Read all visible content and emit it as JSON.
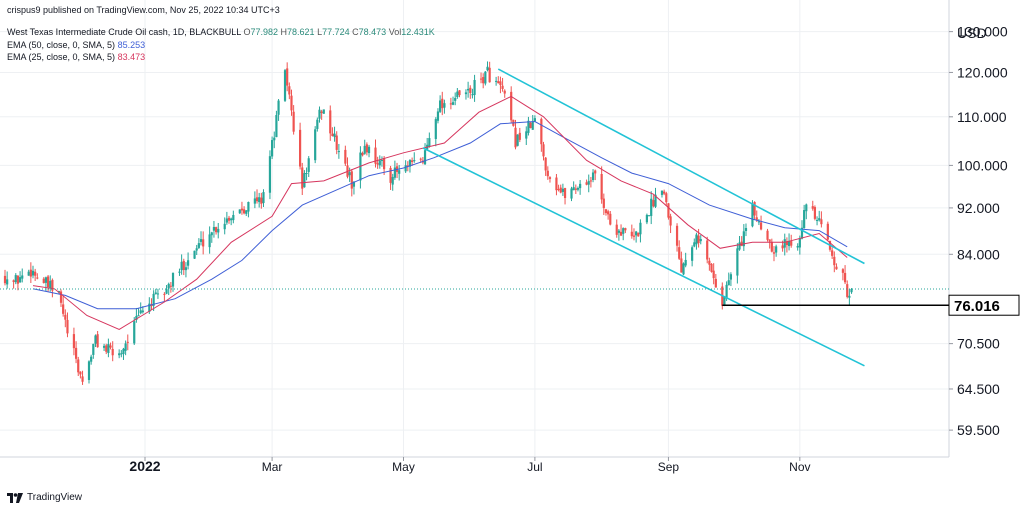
{
  "header": {
    "published": "crispus9 published on TradingView.com, Nov 25, 2022 10:34 UTC+3",
    "symbol": "West Texas Intermediate Crude Oil cash, 1D, BLACKBULL",
    "ohlc": {
      "o_label": "O",
      "o": "77.982",
      "h_label": "H",
      "h": "78.621",
      "l_label": "L",
      "l": "77.724",
      "c_label": "C",
      "c": "78.473",
      "vol_label": "Vol",
      "vol": "12.431K"
    },
    "ema50": {
      "label": "EMA (50, close, 0, SMA, 5)",
      "value": "85.253"
    },
    "ema25": {
      "label": "EMA (25, close, 0, SMA, 5)",
      "value": "83.473"
    }
  },
  "brand": {
    "name": "TradingView"
  },
  "colors": {
    "up": "#26a69a",
    "down": "#ef5350",
    "ema50": "#3f5fd6",
    "ema25": "#d6365e",
    "channel": "#22c3d6",
    "support": "#000000",
    "grid": "#eef0f3"
  },
  "chart_data": {
    "type": "candlestick",
    "currency": "USD",
    "y_ticks": [
      "130.000",
      "120.000",
      "110.000",
      "100.000",
      "92.000",
      "84.000",
      "70.500",
      "64.500",
      "59.500"
    ],
    "y_tick_values": [
      130,
      120,
      110,
      100,
      92,
      84,
      70.5,
      64.5,
      59.5
    ],
    "ylim": [
      57,
      133
    ],
    "log_scale": true,
    "x_ticks": [
      "2022",
      "Mar",
      "May",
      "Jul",
      "Sep",
      "Nov"
    ],
    "x_tick_dates": [
      "2022-01-01",
      "2022-03-01",
      "2022-05-01",
      "2022-07-01",
      "2022-09-01",
      "2022-11-01"
    ],
    "xlim": [
      "2021-10-28",
      "2023-01-06"
    ],
    "support_level": {
      "value": 76.016,
      "label": "76.016",
      "from": "2022-09-26"
    },
    "last_price": 78.473,
    "channel": {
      "upper": [
        [
          "2022-06-14",
          120.8
        ],
        [
          "2022-12-01",
          82.5
        ]
      ],
      "lower": [
        [
          "2022-05-10",
          103.5
        ],
        [
          "2022-12-01",
          67.5
        ]
      ]
    },
    "series": [
      {
        "name": "EMA (50, close, 0, SMA, 5)",
        "type": "line",
        "values": [
          [
            "2021-11-10",
            78.5
          ],
          [
            "2021-11-25",
            77.5
          ],
          [
            "2021-12-10",
            75.5
          ],
          [
            "2021-12-28",
            75.5
          ],
          [
            "2022-01-15",
            77.0
          ],
          [
            "2022-02-01",
            80.0
          ],
          [
            "2022-02-15",
            83.0
          ],
          [
            "2022-03-01",
            88.0
          ],
          [
            "2022-03-15",
            92.5
          ],
          [
            "2022-04-01",
            95.5
          ],
          [
            "2022-04-15",
            98.0
          ],
          [
            "2022-05-01",
            99.5
          ],
          [
            "2022-05-15",
            101.5
          ],
          [
            "2022-06-01",
            104.5
          ],
          [
            "2022-06-15",
            108.5
          ],
          [
            "2022-07-01",
            109.0
          ],
          [
            "2022-07-15",
            105.5
          ],
          [
            "2022-08-01",
            101.5
          ],
          [
            "2022-08-15",
            98.5
          ],
          [
            "2022-09-01",
            96.5
          ],
          [
            "2022-09-20",
            92.5
          ],
          [
            "2022-10-10",
            90.0
          ],
          [
            "2022-10-25",
            88.5
          ],
          [
            "2022-11-10",
            88.0
          ],
          [
            "2022-11-23",
            85.25
          ]
        ]
      },
      {
        "name": "EMA (25, close, 0, SMA, 5)",
        "type": "line",
        "values": [
          [
            "2021-11-10",
            79.0
          ],
          [
            "2021-11-20",
            78.5
          ],
          [
            "2021-12-05",
            74.5
          ],
          [
            "2021-12-20",
            72.5
          ],
          [
            "2022-01-10",
            76.5
          ],
          [
            "2022-01-25",
            80.0
          ],
          [
            "2022-02-10",
            86.0
          ],
          [
            "2022-03-01",
            90.5
          ],
          [
            "2022-03-10",
            96.5
          ],
          [
            "2022-03-25",
            97.0
          ],
          [
            "2022-04-15",
            100.5
          ],
          [
            "2022-05-01",
            102.5
          ],
          [
            "2022-05-20",
            104.5
          ],
          [
            "2022-06-05",
            111.0
          ],
          [
            "2022-06-20",
            114.5
          ],
          [
            "2022-07-05",
            110.0
          ],
          [
            "2022-07-25",
            101.0
          ],
          [
            "2022-08-10",
            97.0
          ],
          [
            "2022-08-25",
            94.5
          ],
          [
            "2022-09-10",
            89.0
          ],
          [
            "2022-09-25",
            85.0
          ],
          [
            "2022-10-10",
            86.0
          ],
          [
            "2022-10-25",
            86.0
          ],
          [
            "2022-11-10",
            87.5
          ],
          [
            "2022-11-23",
            83.47
          ]
        ]
      },
      {
        "name": "WTI",
        "type": "candles",
        "anchors": [
          [
            "2021-10-28",
            80.5
          ],
          [
            "2021-11-01",
            79.5
          ],
          [
            "2021-11-09",
            81.5
          ],
          [
            "2021-11-15",
            79.5
          ],
          [
            "2021-11-22",
            77.5
          ],
          [
            "2021-11-26",
            72.0
          ],
          [
            "2021-12-01",
            67.0
          ],
          [
            "2021-12-03",
            65.5
          ],
          [
            "2021-12-09",
            71.0
          ],
          [
            "2021-12-15",
            69.5
          ],
          [
            "2021-12-20",
            69.0
          ],
          [
            "2021-12-31",
            75.5
          ],
          [
            "2022-01-10",
            78.0
          ],
          [
            "2022-01-20",
            83.0
          ],
          [
            "2022-02-01",
            88.0
          ],
          [
            "2022-02-14",
            92.0
          ],
          [
            "2022-02-24",
            93.5
          ],
          [
            "2022-03-01",
            104.0
          ],
          [
            "2022-03-07",
            121.0
          ],
          [
            "2022-03-15",
            96.0
          ],
          [
            "2022-03-24",
            112.0
          ],
          [
            "2022-04-07",
            96.5
          ],
          [
            "2022-04-13",
            104.0
          ],
          [
            "2022-04-25",
            98.0
          ],
          [
            "2022-05-10",
            101.0
          ],
          [
            "2022-05-17",
            112.5
          ],
          [
            "2022-06-01",
            115.5
          ],
          [
            "2022-06-09",
            120.0
          ],
          [
            "2022-06-16",
            115.5
          ],
          [
            "2022-06-22",
            105.0
          ],
          [
            "2022-07-01",
            109.0
          ],
          [
            "2022-07-07",
            98.5
          ],
          [
            "2022-07-14",
            94.5
          ],
          [
            "2022-07-29",
            98.0
          ],
          [
            "2022-08-05",
            89.0
          ],
          [
            "2022-08-16",
            86.5
          ],
          [
            "2022-08-29",
            96.5
          ],
          [
            "2022-09-07",
            82.0
          ],
          [
            "2022-09-14",
            88.0
          ],
          [
            "2022-09-26",
            76.5
          ],
          [
            "2022-10-03",
            84.5
          ],
          [
            "2022-10-10",
            91.5
          ],
          [
            "2022-10-20",
            85.0
          ],
          [
            "2022-10-31",
            86.5
          ],
          [
            "2022-11-04",
            92.5
          ],
          [
            "2022-11-11",
            88.5
          ],
          [
            "2022-11-21",
            80.0
          ],
          [
            "2022-11-23",
            77.5
          ],
          [
            "2022-11-25",
            78.47
          ]
        ]
      }
    ]
  }
}
